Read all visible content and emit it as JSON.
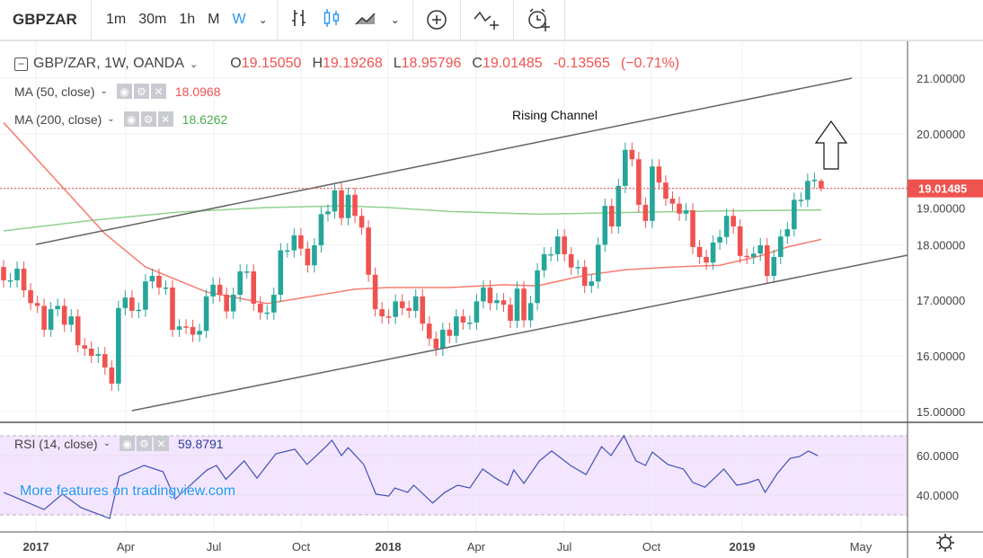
{
  "toolbar": {
    "symbol": "GBPZAR",
    "intervals": [
      "1m",
      "30m",
      "1h",
      "M",
      "W"
    ],
    "active_interval": "W",
    "icons": [
      "chevron-down-icon",
      "bar-chart-icon",
      "candles-icon",
      "area-chart-icon",
      "chevron-down-icon",
      "compare-plus-icon",
      "indicators-icon",
      "alert-clock-icon"
    ]
  },
  "legend": {
    "title": "GBP/ZAR, 1W, OANDA",
    "o_label": "O",
    "o": "19.15050",
    "h_label": "H",
    "h": "19.19268",
    "l_label": "L",
    "l": "18.95796",
    "c_label": "C",
    "c": "19.01485",
    "change": "-0.13565",
    "change_pct": "(−0.71%)",
    "ma50": {
      "label": "MA (50, close)",
      "value": "18.0968"
    },
    "ma200": {
      "label": "MA (200, close)",
      "value": "18.6262"
    },
    "rsi": {
      "label": "RSI (14, close)",
      "value": "59.8791"
    }
  },
  "watermark": "More features on tradingview.com",
  "colors": {
    "up": "#26a69a",
    "down": "#ef5350",
    "ma50": "#f77c6e",
    "ma200": "#8fd18f",
    "rsi": "#3f51b5",
    "rsi_band": "#f3e5fd",
    "channel": "#666666"
  },
  "chart_data": {
    "type": "candlestick",
    "symbol": "GBP/ZAR",
    "timeframe": "1W",
    "ylim": [
      14.8,
      21.4
    ],
    "price_ticks": [
      "21.00000",
      "20.00000",
      "19.00000",
      "18.00000",
      "17.00000",
      "16.00000",
      "15.00000"
    ],
    "time_ticks": [
      "2017",
      "Apr",
      "Jul",
      "Oct",
      "2018",
      "Apr",
      "Jul",
      "Oct",
      "2019",
      "May"
    ],
    "first_open": 17.6,
    "closes": [
      17.36,
      17.36,
      17.57,
      17.18,
      16.95,
      16.9,
      16.47,
      16.84,
      16.9,
      16.56,
      16.71,
      16.19,
      16.13,
      16.0,
      16.03,
      15.79,
      15.5,
      16.86,
      17.05,
      16.81,
      16.83,
      17.34,
      17.44,
      17.23,
      17.23,
      16.47,
      16.53,
      16.52,
      16.38,
      16.45,
      17.07,
      17.28,
      17.1,
      16.8,
      17.1,
      17.52,
      17.52,
      16.94,
      16.78,
      16.78,
      17.1,
      17.9,
      17.9,
      18.17,
      17.93,
      17.63,
      17.99,
      18.55,
      18.6,
      18.98,
      18.48,
      18.9,
      18.52,
      18.31,
      17.46,
      16.84,
      16.71,
      16.7,
      16.98,
      16.86,
      16.81,
      17.07,
      16.58,
      16.31,
      16.13,
      16.47,
      16.36,
      16.71,
      16.6,
      16.6,
      16.98,
      17.23,
      16.95,
      17.0,
      16.92,
      16.63,
      17.21,
      16.64,
      16.95,
      17.54,
      17.83,
      17.83,
      18.15,
      17.83,
      17.59,
      17.6,
      17.26,
      17.34,
      18.0,
      18.7,
      18.33,
      19.06,
      19.71,
      19.54,
      18.72,
      18.43,
      19.41,
      19.12,
      18.83,
      18.74,
      18.56,
      18.62,
      17.96,
      17.78,
      17.68,
      18.04,
      18.14,
      18.52,
      18.33,
      17.8,
      17.78,
      17.84,
      17.99,
      17.44,
      17.78,
      18.15,
      18.28,
      18.81,
      18.81,
      19.15,
      19.17,
      19.01485
    ],
    "last_candle": {
      "open": 19.1505,
      "high": 19.19268,
      "low": 18.95796,
      "close": 19.01485
    },
    "ma50": [
      [
        0,
        20.2
      ],
      [
        15,
        18.2
      ],
      [
        21,
        17.6
      ],
      [
        30,
        17.15
      ],
      [
        39,
        16.94
      ],
      [
        52,
        17.2
      ],
      [
        57,
        17.23
      ],
      [
        66,
        17.23
      ],
      [
        74,
        17.28
      ],
      [
        79,
        17.26
      ],
      [
        86,
        17.45
      ],
      [
        92,
        17.55
      ],
      [
        99,
        17.6
      ],
      [
        106,
        17.63
      ],
      [
        112,
        17.8
      ],
      [
        116,
        17.96
      ],
      [
        121,
        18.0968
      ]
    ],
    "ma200": [
      [
        0,
        18.25
      ],
      [
        13,
        18.44
      ],
      [
        26,
        18.59
      ],
      [
        39,
        18.67
      ],
      [
        50,
        18.7
      ],
      [
        57,
        18.67
      ],
      [
        66,
        18.6
      ],
      [
        79,
        18.55
      ],
      [
        92,
        18.58
      ],
      [
        106,
        18.61
      ],
      [
        121,
        18.6262
      ]
    ],
    "rsi": {
      "ylim": [
        20,
        80
      ],
      "ticks": [
        "60.0000",
        "40.0000"
      ],
      "bands": [
        30,
        70
      ],
      "points": [
        [
          0,
          41.4
        ],
        [
          2.2,
          38.2
        ],
        [
          6,
          32.7
        ],
        [
          8.7,
          40.5
        ],
        [
          11.5,
          33.6
        ],
        [
          15.7,
          28.2
        ],
        [
          17.1,
          49.5
        ],
        [
          20.8,
          55
        ],
        [
          23.6,
          51.8
        ],
        [
          25.4,
          38
        ],
        [
          30.1,
          52.7
        ],
        [
          31.5,
          55
        ],
        [
          32.9,
          48
        ],
        [
          35.6,
          57.3
        ],
        [
          37.5,
          48.6
        ],
        [
          40.3,
          60.9
        ],
        [
          43.1,
          63.2
        ],
        [
          44.9,
          55.5
        ],
        [
          47.7,
          64.5
        ],
        [
          48.6,
          67.7
        ],
        [
          50,
          60
        ],
        [
          51,
          64
        ],
        [
          53.3,
          55.5
        ],
        [
          55.1,
          40.5
        ],
        [
          57,
          39.5
        ],
        [
          57.9,
          43.6
        ],
        [
          59.8,
          41.4
        ],
        [
          60.7,
          45
        ],
        [
          63.5,
          36
        ],
        [
          65.3,
          41.4
        ],
        [
          67.2,
          45
        ],
        [
          69,
          43.6
        ],
        [
          70.9,
          53.2
        ],
        [
          72.8,
          48.6
        ],
        [
          74.6,
          45
        ],
        [
          75.5,
          52.7
        ],
        [
          77,
          45.9
        ],
        [
          79.3,
          57.3
        ],
        [
          81.1,
          62.3
        ],
        [
          82,
          60
        ],
        [
          83.9,
          55
        ],
        [
          86.2,
          50.4
        ],
        [
          88.5,
          64.5
        ],
        [
          89.9,
          60
        ],
        [
          91.8,
          70
        ],
        [
          93.6,
          57.3
        ],
        [
          95,
          55
        ],
        [
          96,
          61.8
        ],
        [
          98.3,
          55.5
        ],
        [
          100.6,
          53.2
        ],
        [
          102,
          46.4
        ],
        [
          103.8,
          44
        ],
        [
          105.2,
          48.6
        ],
        [
          106.6,
          53.2
        ],
        [
          108.5,
          45
        ],
        [
          109.9,
          45.9
        ],
        [
          111.7,
          48
        ],
        [
          112.7,
          41.4
        ],
        [
          114.5,
          50.9
        ],
        [
          116.4,
          58.6
        ],
        [
          117.8,
          59.5
        ],
        [
          119.1,
          62.3
        ],
        [
          120.5,
          59.9
        ]
      ]
    },
    "annotations": {
      "channel_label": "Rising Channel",
      "arrow": "up-arrow"
    },
    "current_price_label": "19.01485",
    "grid": true
  }
}
